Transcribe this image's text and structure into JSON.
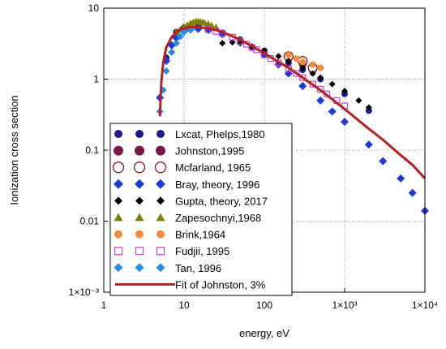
{
  "chart_data": {
    "type": "scatter",
    "xlabel": "energy, eV",
    "ylabel": "Ionization cross section",
    "xscale": "log",
    "yscale": "log",
    "xlim": [
      1,
      10000
    ],
    "ylim": [
      0.001,
      10
    ],
    "x_ticks": [
      "1",
      "10",
      "100",
      "1×10³",
      "1×10⁴"
    ],
    "y_ticks": [
      "1×10⁻³",
      "0.01",
      "0.1",
      "1",
      "10"
    ],
    "legend_position": "bottom-left",
    "series": [
      {
        "name": "Lxcat, Phelps,1980",
        "marker": "circle",
        "color": "#1a1a8c",
        "size": 8,
        "x": [
          6,
          8,
          10,
          12,
          15,
          20,
          30,
          50,
          100,
          200,
          300,
          500,
          1000,
          2000
        ],
        "y": [
          2.0,
          4.6,
          5.3,
          5.6,
          5.6,
          5.2,
          4.5,
          3.6,
          2.5,
          1.7,
          1.35,
          1.0,
          0.62,
          0.36
        ]
      },
      {
        "name": "Johnston,1995",
        "marker": "circle",
        "color": "#7a1a4a",
        "size": 10,
        "x": [
          200,
          300,
          400
        ],
        "y": [
          2.0,
          1.65,
          1.35
        ]
      },
      {
        "name": "Mcfarland, 1965",
        "marker": "circle-open",
        "color": "#8b1a1a",
        "size": 11,
        "x": [
          200,
          300,
          400
        ],
        "y": [
          2.1,
          1.8,
          1.45
        ]
      },
      {
        "name": "Bray, theory, 1996",
        "marker": "diamond",
        "color": "#1a3ad9",
        "size": 10,
        "x": [
          5,
          6,
          7,
          8,
          10,
          12,
          15,
          20,
          30,
          50,
          70,
          100,
          150,
          200,
          300,
          500,
          700,
          1000,
          2000,
          3000,
          5000,
          7000,
          10000
        ],
        "y": [
          0.55,
          1.8,
          3.0,
          3.8,
          4.7,
          5.0,
          5.1,
          4.9,
          4.3,
          3.4,
          2.8,
          2.2,
          1.6,
          1.2,
          0.8,
          0.5,
          0.35,
          0.25,
          0.12,
          0.07,
          0.04,
          0.025,
          0.014
        ]
      },
      {
        "name": "Gupta, theory, 2017",
        "marker": "diamond",
        "color": "#000000",
        "size": 8,
        "x": [
          30,
          40,
          50,
          70,
          100,
          150,
          200,
          300,
          400,
          500,
          700,
          1000,
          1500,
          2000
        ],
        "y": [
          3.2,
          3.3,
          3.2,
          2.9,
          2.5,
          2.1,
          1.8,
          1.45,
          1.2,
          1.05,
          0.85,
          0.68,
          0.5,
          0.4
        ]
      },
      {
        "name": "Zapesochnyi,1968",
        "marker": "triangle",
        "color": "#808000",
        "size": 9,
        "x": [
          8,
          9,
          10,
          11,
          12,
          13,
          14,
          15,
          16,
          17,
          18,
          20,
          22,
          25
        ],
        "y": [
          4.6,
          5.0,
          5.5,
          5.8,
          6.1,
          6.3,
          6.5,
          6.5,
          6.4,
          6.3,
          6.2,
          6.0,
          5.7,
          5.4
        ]
      },
      {
        "name": "Brink,1964",
        "marker": "circle",
        "color": "#f08c3c",
        "size": 8,
        "x": [
          200,
          250,
          300,
          400,
          500
        ],
        "y": [
          2.2,
          1.95,
          1.75,
          1.6,
          1.45
        ]
      },
      {
        "name": "Fudjii, 1995",
        "marker": "square-open",
        "color": "#d040d0",
        "size": 7,
        "x": [
          20,
          25,
          30,
          40,
          50,
          60,
          70,
          80,
          100,
          120,
          150,
          200,
          250,
          300,
          400,
          500,
          600,
          800,
          1000
        ],
        "y": [
          5.0,
          4.7,
          4.4,
          3.9,
          3.4,
          3.1,
          2.8,
          2.6,
          2.2,
          1.95,
          1.7,
          1.4,
          1.2,
          1.05,
          0.85,
          0.72,
          0.62,
          0.5,
          0.42
        ]
      },
      {
        "name": "Tan, 1996",
        "marker": "diamond",
        "color": "#2a8ce0",
        "size": 9,
        "x": [
          5,
          5.5,
          6,
          7,
          8,
          9,
          10,
          12
        ],
        "y": [
          0.35,
          0.7,
          1.3,
          2.4,
          3.2,
          4.0,
          4.6,
          5.0
        ]
      },
      {
        "name": "Fit of Johnston, 3%",
        "marker": "line",
        "color": "#b22222",
        "size": 3,
        "x": [
          5,
          5.2,
          5.5,
          6,
          7,
          8,
          9,
          10,
          12,
          15,
          20,
          25,
          30,
          40,
          50,
          70,
          100,
          150,
          200,
          300,
          500,
          700,
          1000,
          2000,
          3000,
          5000,
          7000,
          10000
        ],
        "y": [
          0.3,
          0.9,
          1.7,
          2.8,
          3.9,
          4.6,
          5.0,
          5.2,
          5.4,
          5.4,
          5.2,
          4.9,
          4.6,
          4.0,
          3.6,
          2.9,
          2.3,
          1.75,
          1.45,
          1.05,
          0.7,
          0.52,
          0.38,
          0.2,
          0.14,
          0.085,
          0.062,
          0.04
        ]
      }
    ]
  }
}
